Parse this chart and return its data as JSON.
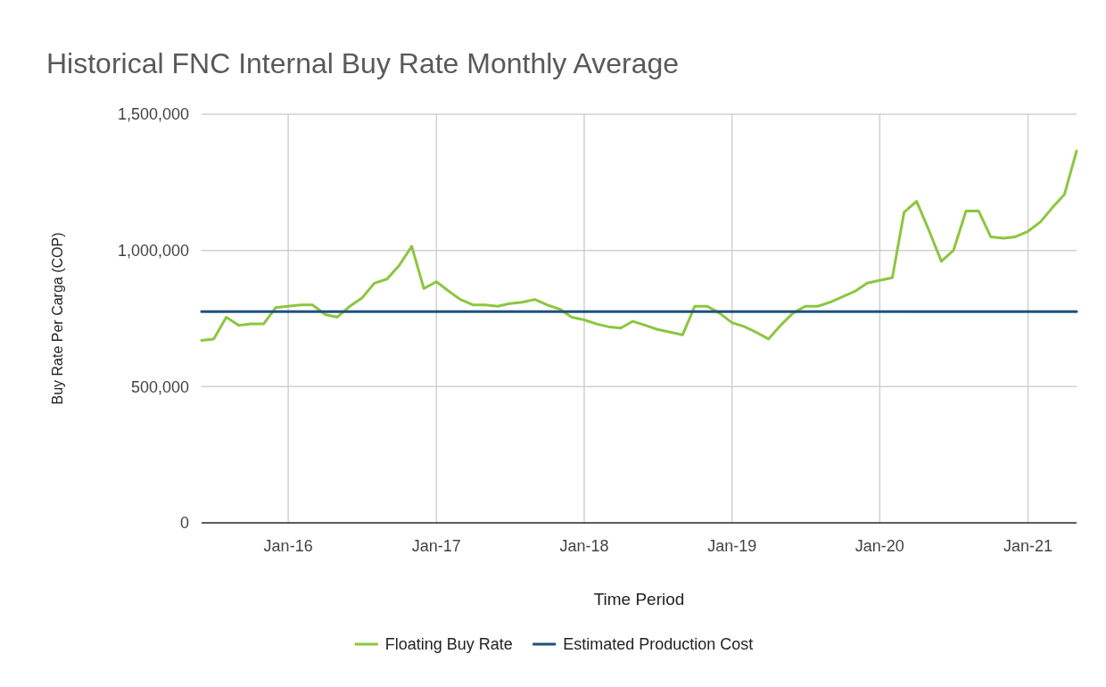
{
  "chart_data": {
    "type": "line",
    "title": "Historical FNC Internal Buy Rate Monthly Average",
    "xlabel": "Time Period",
    "ylabel": "Buy Rate Per Carga (COP)",
    "x": [
      "2015-06",
      "2015-07",
      "2015-08",
      "2015-09",
      "2015-10",
      "2015-11",
      "2015-12",
      "2016-01",
      "2016-02",
      "2016-03",
      "2016-04",
      "2016-05",
      "2016-06",
      "2016-07",
      "2016-08",
      "2016-09",
      "2016-10",
      "2016-11",
      "2016-12",
      "2017-01",
      "2017-02",
      "2017-03",
      "2017-04",
      "2017-05",
      "2017-06",
      "2017-07",
      "2017-08",
      "2017-09",
      "2017-10",
      "2017-11",
      "2017-12",
      "2018-01",
      "2018-02",
      "2018-03",
      "2018-04",
      "2018-05",
      "2018-06",
      "2018-07",
      "2018-08",
      "2018-09",
      "2018-10",
      "2018-11",
      "2018-12",
      "2019-01",
      "2019-02",
      "2019-03",
      "2019-04",
      "2019-05",
      "2019-06",
      "2019-07",
      "2019-08",
      "2019-09",
      "2019-10",
      "2019-11",
      "2019-12",
      "2020-01",
      "2020-02",
      "2020-03",
      "2020-04",
      "2020-05",
      "2020-06",
      "2020-07",
      "2020-08",
      "2020-09",
      "2020-10",
      "2020-11",
      "2020-12",
      "2021-01",
      "2021-02",
      "2021-03",
      "2021-04",
      "2021-05"
    ],
    "series": [
      {
        "name": "Floating Buy Rate",
        "color": "#8cc63f",
        "values": [
          670000,
          675000,
          755000,
          725000,
          730000,
          730000,
          790000,
          795000,
          800000,
          800000,
          765000,
          755000,
          795000,
          825000,
          880000,
          895000,
          945000,
          1015000,
          860000,
          885000,
          850000,
          820000,
          800000,
          800000,
          795000,
          805000,
          810000,
          820000,
          800000,
          785000,
          755000,
          745000,
          730000,
          720000,
          715000,
          740000,
          725000,
          710000,
          700000,
          690000,
          795000,
          795000,
          770000,
          735000,
          720000,
          700000,
          675000,
          725000,
          770000,
          795000,
          795000,
          810000,
          830000,
          850000,
          880000,
          890000,
          900000,
          1140000,
          1180000,
          1075000,
          960000,
          1000000,
          1145000,
          1145000,
          1050000,
          1045000,
          1050000,
          1070000,
          1105000,
          1155000,
          1205000,
          1365000
        ]
      },
      {
        "name": "Estimated Production Cost",
        "color": "#1f5080",
        "x": [
          "2015-06",
          "2021-05"
        ],
        "values": [
          775000,
          775000
        ]
      }
    ],
    "xlim": [
      "2015-06",
      "2021-05"
    ],
    "xticks": [
      {
        "value": "2016-01",
        "label": "Jan-16"
      },
      {
        "value": "2017-01",
        "label": "Jan-17"
      },
      {
        "value": "2018-01",
        "label": "Jan-18"
      },
      {
        "value": "2019-01",
        "label": "Jan-19"
      },
      {
        "value": "2020-01",
        "label": "Jan-20"
      },
      {
        "value": "2021-01",
        "label": "Jan-21"
      }
    ],
    "ylim": [
      0,
      1500000
    ],
    "yticks": [
      {
        "value": 0,
        "label": "0"
      },
      {
        "value": 500000,
        "label": "500,000"
      },
      {
        "value": 1000000,
        "label": "1,000,000"
      },
      {
        "value": 1500000,
        "label": "1,500,000"
      }
    ],
    "grid": true,
    "legend": "bottom",
    "marker": "none",
    "line_style": "solid"
  }
}
